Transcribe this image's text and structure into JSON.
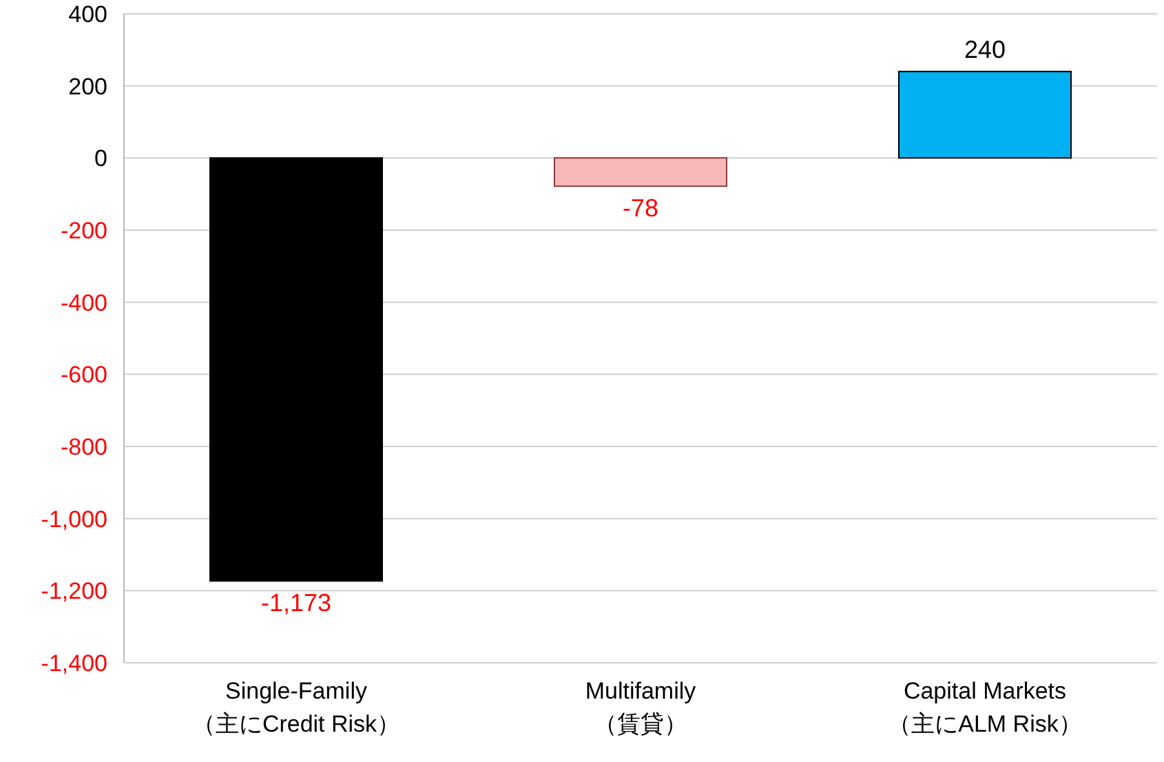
{
  "chart_data": {
    "type": "bar",
    "categories": [
      "Single-Family\n（主にCredit Risk）",
      "Multifamily\n（賃貸）",
      "Capital Markets\n（主にALM Risk）"
    ],
    "values": [
      -1173,
      -78,
      240
    ],
    "colors": [
      "#000000",
      "#f7b8b8",
      "#00b0f0"
    ],
    "value_labels": [
      "-1,173",
      "-78",
      "240"
    ],
    "ylim": [
      -1400,
      400
    ],
    "yticks": [
      400,
      200,
      0,
      {
        "value": -200,
        "label": "-200"
      },
      {
        "value": -400,
        "label": "-400"
      },
      {
        "value": -600,
        "label": "-600"
      },
      {
        "value": -800,
        "label": "-800"
      },
      {
        "value": -1000,
        "label": "-1,000"
      },
      {
        "value": -1200,
        "label": "-1,200"
      },
      {
        "value": -1400,
        "label": "-1,400"
      }
    ],
    "grid": "y",
    "legend": false
  }
}
